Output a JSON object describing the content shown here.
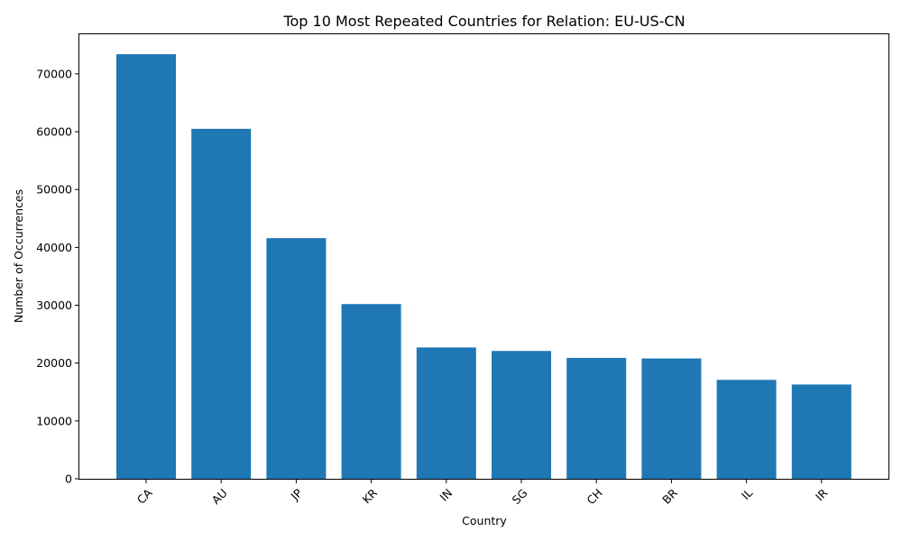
{
  "chart_data": {
    "type": "bar",
    "title": "Top 10 Most Repeated Countries for Relation: EU-US-CN",
    "xlabel": "Country",
    "ylabel": "Number of Occurrences",
    "categories": [
      "CA",
      "AU",
      "JP",
      "KR",
      "IN",
      "SG",
      "CH",
      "BR",
      "IL",
      "IR"
    ],
    "values": [
      73400,
      60500,
      41600,
      30200,
      22700,
      22100,
      20900,
      20800,
      17100,
      16300
    ],
    "ylim": [
      0,
      77000
    ],
    "yticks": [
      0,
      10000,
      20000,
      30000,
      40000,
      50000,
      60000,
      70000
    ],
    "grid": false,
    "bar_color": "#1f77b4",
    "xtick_rotation_deg": 45
  }
}
